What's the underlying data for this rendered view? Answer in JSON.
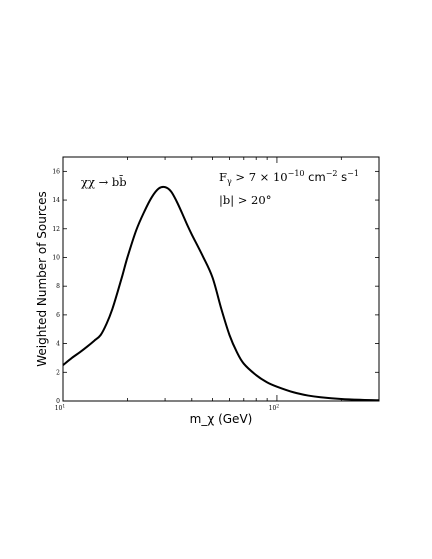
{
  "chart_data": {
    "type": "line",
    "xscale": "log",
    "xlim": [
      10,
      300
    ],
    "ylim": [
      0,
      17
    ],
    "xlabel": "m_χ (GeV)",
    "ylabel": "Weighted Number of Sources",
    "xticks": [
      {
        "value": 10,
        "base": "10",
        "exp": "1"
      },
      {
        "value": 100,
        "base": "10",
        "exp": "2"
      }
    ],
    "yticks": [
      0,
      2,
      4,
      6,
      8,
      10,
      12,
      14,
      16
    ],
    "annotations": {
      "channel": "χχ → bb̄",
      "flux_prefix": "F",
      "flux_sub": "γ",
      "flux_mid": " > 7 × 10",
      "flux_exp1": "−10",
      "flux_unit1": " cm",
      "flux_exp2": "−2",
      "flux_unit2": " s",
      "flux_exp3": "−1",
      "latitude": "|b| > 20°"
    },
    "series": [
      {
        "x": [
          10,
          11,
          12,
          13,
          14,
          15,
          16,
          17,
          18,
          19,
          20,
          22,
          24,
          26,
          28,
          30,
          32,
          34,
          36,
          38,
          40,
          45,
          50,
          55,
          60,
          65,
          70,
          80,
          90,
          100,
          120,
          140,
          160,
          200,
          250,
          300
        ],
        "y": [
          2.5,
          3.0,
          3.4,
          3.8,
          4.2,
          4.6,
          5.4,
          6.4,
          7.6,
          8.8,
          10.0,
          11.9,
          13.2,
          14.2,
          14.8,
          14.9,
          14.6,
          13.9,
          13.1,
          12.3,
          11.6,
          10.1,
          8.6,
          6.4,
          4.6,
          3.4,
          2.6,
          1.8,
          1.3,
          1.0,
          0.6,
          0.38,
          0.26,
          0.14,
          0.08,
          0.05
        ]
      }
    ],
    "line_color": "#000000",
    "grid": false
  }
}
